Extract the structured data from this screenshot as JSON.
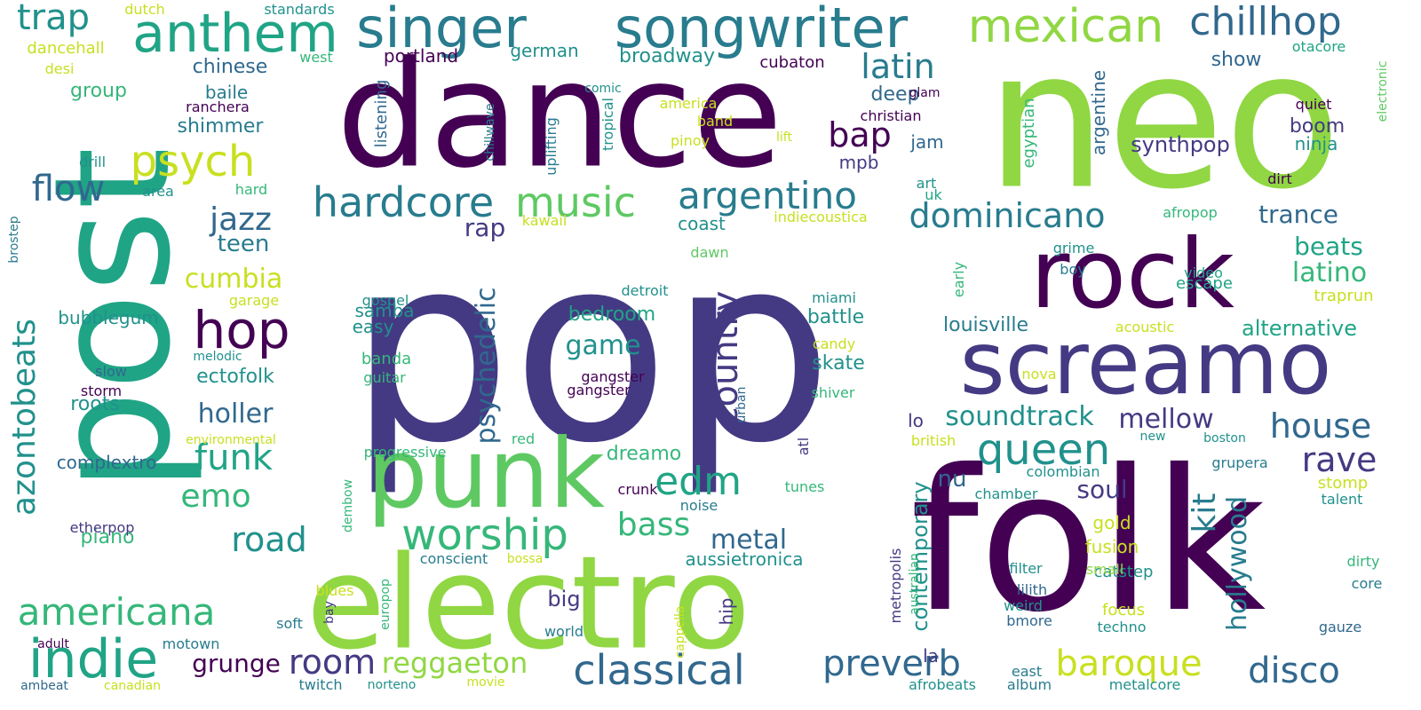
{
  "palette": {
    "background": "#ffffff",
    "dark_purple": "#440154",
    "indigo": "#443a83",
    "blue": "#31688e",
    "teal_blue": "#287c8e",
    "teal": "#21918c",
    "green_teal": "#20a486",
    "green": "#35b779",
    "light_green": "#5ec962",
    "lime": "#90d743",
    "yellow": "#c8e020",
    "bright_yellow": "#fde725"
  },
  "words": [
    "pop",
    "neo",
    "folk",
    "post",
    "dance",
    "electro",
    "screamo",
    "rock",
    "punk",
    "singer",
    "songwriter",
    "indie",
    "anthem",
    "chillhop",
    "mexican",
    "hop",
    "psych",
    "hardcore",
    "music",
    "argentino",
    "dominicano",
    "queen",
    "worship",
    "edm",
    "country",
    "classical",
    "preverb",
    "americana",
    "baroque",
    "disco",
    "reggaeton",
    "room",
    "rave",
    "house",
    "trap",
    "latin",
    "bap",
    "flow",
    "jazz",
    "funk",
    "azontobeats",
    "road",
    "kit",
    "hollywood",
    "psychedelic",
    "soundtrack",
    "mellow",
    "bass",
    "metal",
    "emo",
    "grunge",
    "game",
    "latino",
    "beats",
    "trance",
    "alternative",
    "soul",
    "holler",
    "cumbia",
    "teen",
    "rap",
    "bedroom",
    "battle",
    "skate",
    "louisville",
    "nu",
    "big",
    "contemporary",
    "ectofolk",
    "roots",
    "bubblegum",
    "complextro",
    "piano",
    "samba",
    "easy",
    "banda",
    "guitar",
    "dreamo",
    "boom",
    "synthpop",
    "deep",
    "jam",
    "mpb",
    "chinese",
    "group",
    "baile",
    "shimmer",
    "listening",
    "german",
    "broadway",
    "portland",
    "cubaton",
    "show",
    "egyptian",
    "argentine",
    "band",
    "christian",
    "ninja",
    "dirt",
    "quiet",
    "afropop",
    "aussietronica",
    "hip",
    "gold",
    "fusion",
    "stomp",
    "traprun",
    "escape",
    "video",
    "grime",
    "boy",
    "acoustic",
    "early",
    "miami",
    "detroit",
    "gospel",
    "melodic",
    "slow",
    "storm",
    "gangster",
    "nova",
    "candy",
    "shiver",
    "urban",
    "atl",
    "lo",
    "gangster",
    "red",
    "progressive",
    "environmental",
    "crunk",
    "noise",
    "dembow",
    "etherpop",
    "conscient",
    "bossa",
    "blues",
    "europop",
    "bay",
    "soft",
    "world",
    "cappella",
    "metropolis",
    "australian",
    "la",
    "catstep",
    "filter",
    "lilith",
    "weird",
    "small",
    "focus",
    "techno",
    "bmore",
    "metalcore",
    "album",
    "afrobeats",
    "twitch",
    "norteno",
    "movie",
    "motown",
    "adult",
    "ambeat",
    "canadian",
    "east",
    "gauze",
    "core",
    "dirty",
    "talent",
    "grupera",
    "chamber",
    "colombian",
    "boston",
    "new",
    "british",
    "tunes",
    "dawn",
    "coast",
    "kawaii",
    "indiecoustica",
    "uk",
    "art",
    "glam",
    "lift",
    "pinoy",
    "america",
    "comic",
    "tropical",
    "uplifting",
    "chillwave",
    "ranchera",
    "desi",
    "dancehall",
    "dutch",
    "standards",
    "west",
    "otacore",
    "electronic",
    "drill",
    "hard",
    "area",
    "brostep",
    "garage"
  ]
}
